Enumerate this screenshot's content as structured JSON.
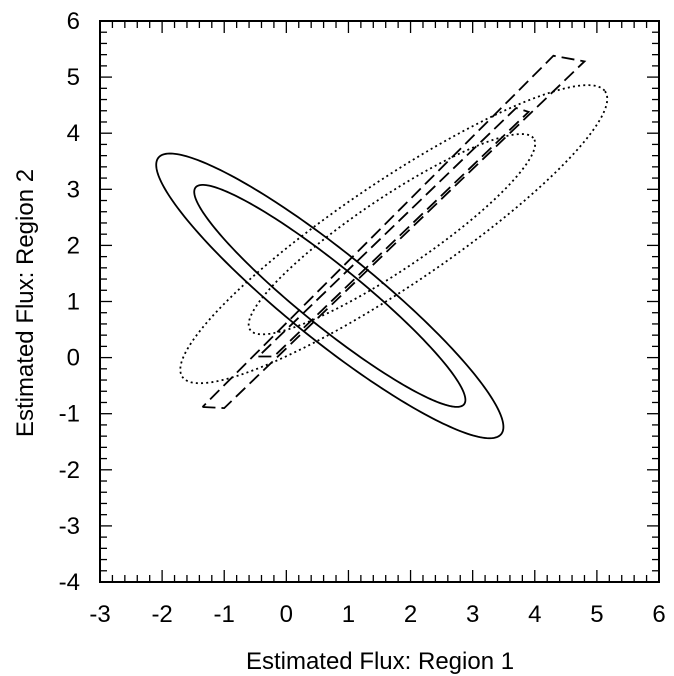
{
  "chart_data": {
    "type": "scatter",
    "title": "",
    "xlabel": "Estimated Flux: Region 1",
    "ylabel": "Estimated Flux: Region 2",
    "xlim": [
      -3,
      6
    ],
    "ylim": [
      -4,
      6
    ],
    "xticks": [
      "-3",
      "-2",
      "-1",
      "0",
      "1",
      "2",
      "3",
      "4",
      "5",
      "6"
    ],
    "yticks": [
      "-4",
      "-3",
      "-2",
      "-1",
      "0",
      "1",
      "2",
      "3",
      "4",
      "5",
      "6"
    ],
    "grid": false,
    "legend": "none",
    "line_color": "#000000",
    "series": [
      {
        "style": "solid",
        "values": [
          {
            "cx": 0.7,
            "cy": 1.1,
            "a": 3.7,
            "b": 0.75,
            "angle_deg": -42
          },
          {
            "cx": 0.7,
            "cy": 1.1,
            "a": 2.9,
            "b": 0.52,
            "angle_deg": -42
          }
        ]
      },
      {
        "style": "dotted",
        "values": [
          {
            "cx": 1.73,
            "cy": 2.2,
            "a": 4.25,
            "b": 0.9,
            "angle_deg": 37
          },
          {
            "cx": 1.7,
            "cy": 2.2,
            "a": 2.85,
            "b": 0.62,
            "angle_deg": 37
          }
        ]
      },
      {
        "style": "dashed",
        "values": [
          {
            "x": [
              -1.35,
              -1.0,
              4.8,
              4.3,
              -1.35
            ],
            "y": [
              -0.88,
              -0.9,
              5.28,
              5.38,
              -0.88
            ]
          },
          {
            "x": [
              -0.45,
              -0.2,
              3.9,
              3.7,
              -0.45
            ],
            "y": [
              0.02,
              0.02,
              4.38,
              4.45,
              0.02
            ]
          }
        ]
      }
    ]
  }
}
